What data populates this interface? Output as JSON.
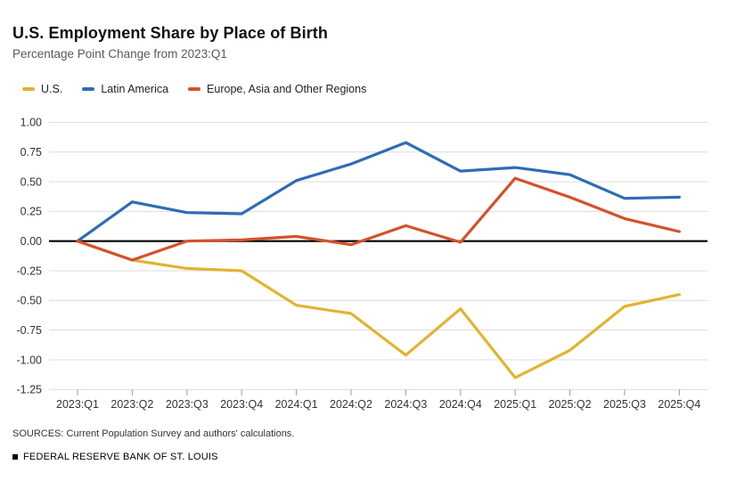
{
  "header": {
    "title": "U.S. Employment Share by Place of Birth",
    "subtitle": "Percentage Point Change from 2023:Q1"
  },
  "legend": {
    "items": [
      {
        "label": "U.S.",
        "color": "#E3B330"
      },
      {
        "label": "Latin America",
        "color": "#2E6DB4"
      },
      {
        "label": "Europe, Asia and Other Regions",
        "color": "#D5512B"
      }
    ]
  },
  "chart_data": {
    "type": "line",
    "title": "U.S. Employment Share by Place of Birth",
    "subtitle": "Percentage Point Change from 2023:Q1",
    "categories": [
      "2023:Q1",
      "2023:Q2",
      "2023:Q3",
      "2023:Q4",
      "2024:Q1",
      "2024:Q2",
      "2024:Q3",
      "2024:Q4",
      "2025:Q1",
      "2025:Q2",
      "2025:Q3",
      "2025:Q4"
    ],
    "series": [
      {
        "name": "U.S.",
        "color": "#E3B330",
        "values": [
          0.0,
          -0.16,
          -0.23,
          -0.25,
          -0.54,
          -0.61,
          -0.96,
          -0.57,
          -1.15,
          -0.92,
          -0.55,
          -0.45
        ]
      },
      {
        "name": "Latin America",
        "color": "#2E6DB4",
        "values": [
          0.0,
          0.33,
          0.24,
          0.23,
          0.51,
          0.65,
          0.83,
          0.59,
          0.62,
          0.56,
          0.36,
          0.37
        ]
      },
      {
        "name": "Europe, Asia and Other Regions",
        "color": "#D5512B",
        "values": [
          0.0,
          -0.16,
          0.0,
          0.01,
          0.04,
          -0.03,
          0.13,
          -0.01,
          0.53,
          0.37,
          0.19,
          0.08
        ]
      }
    ],
    "xlabel": "",
    "ylabel": "",
    "ylim": [
      -1.25,
      1.0
    ],
    "yticks": [
      1.0,
      0.75,
      0.5,
      0.25,
      0.0,
      -0.25,
      -0.5,
      -0.75,
      -1.0,
      -1.25
    ],
    "grid": true,
    "grid_color": "#DCDCDC",
    "zero_line": true,
    "zero_line_color": "#000000",
    "axis_label_color": "#333333",
    "legend_position": "top"
  },
  "footer": {
    "sources": "SOURCES: Current Population Survey and authors' calculations.",
    "branding": "FEDERAL RESERVE BANK OF ST. LOUIS"
  }
}
